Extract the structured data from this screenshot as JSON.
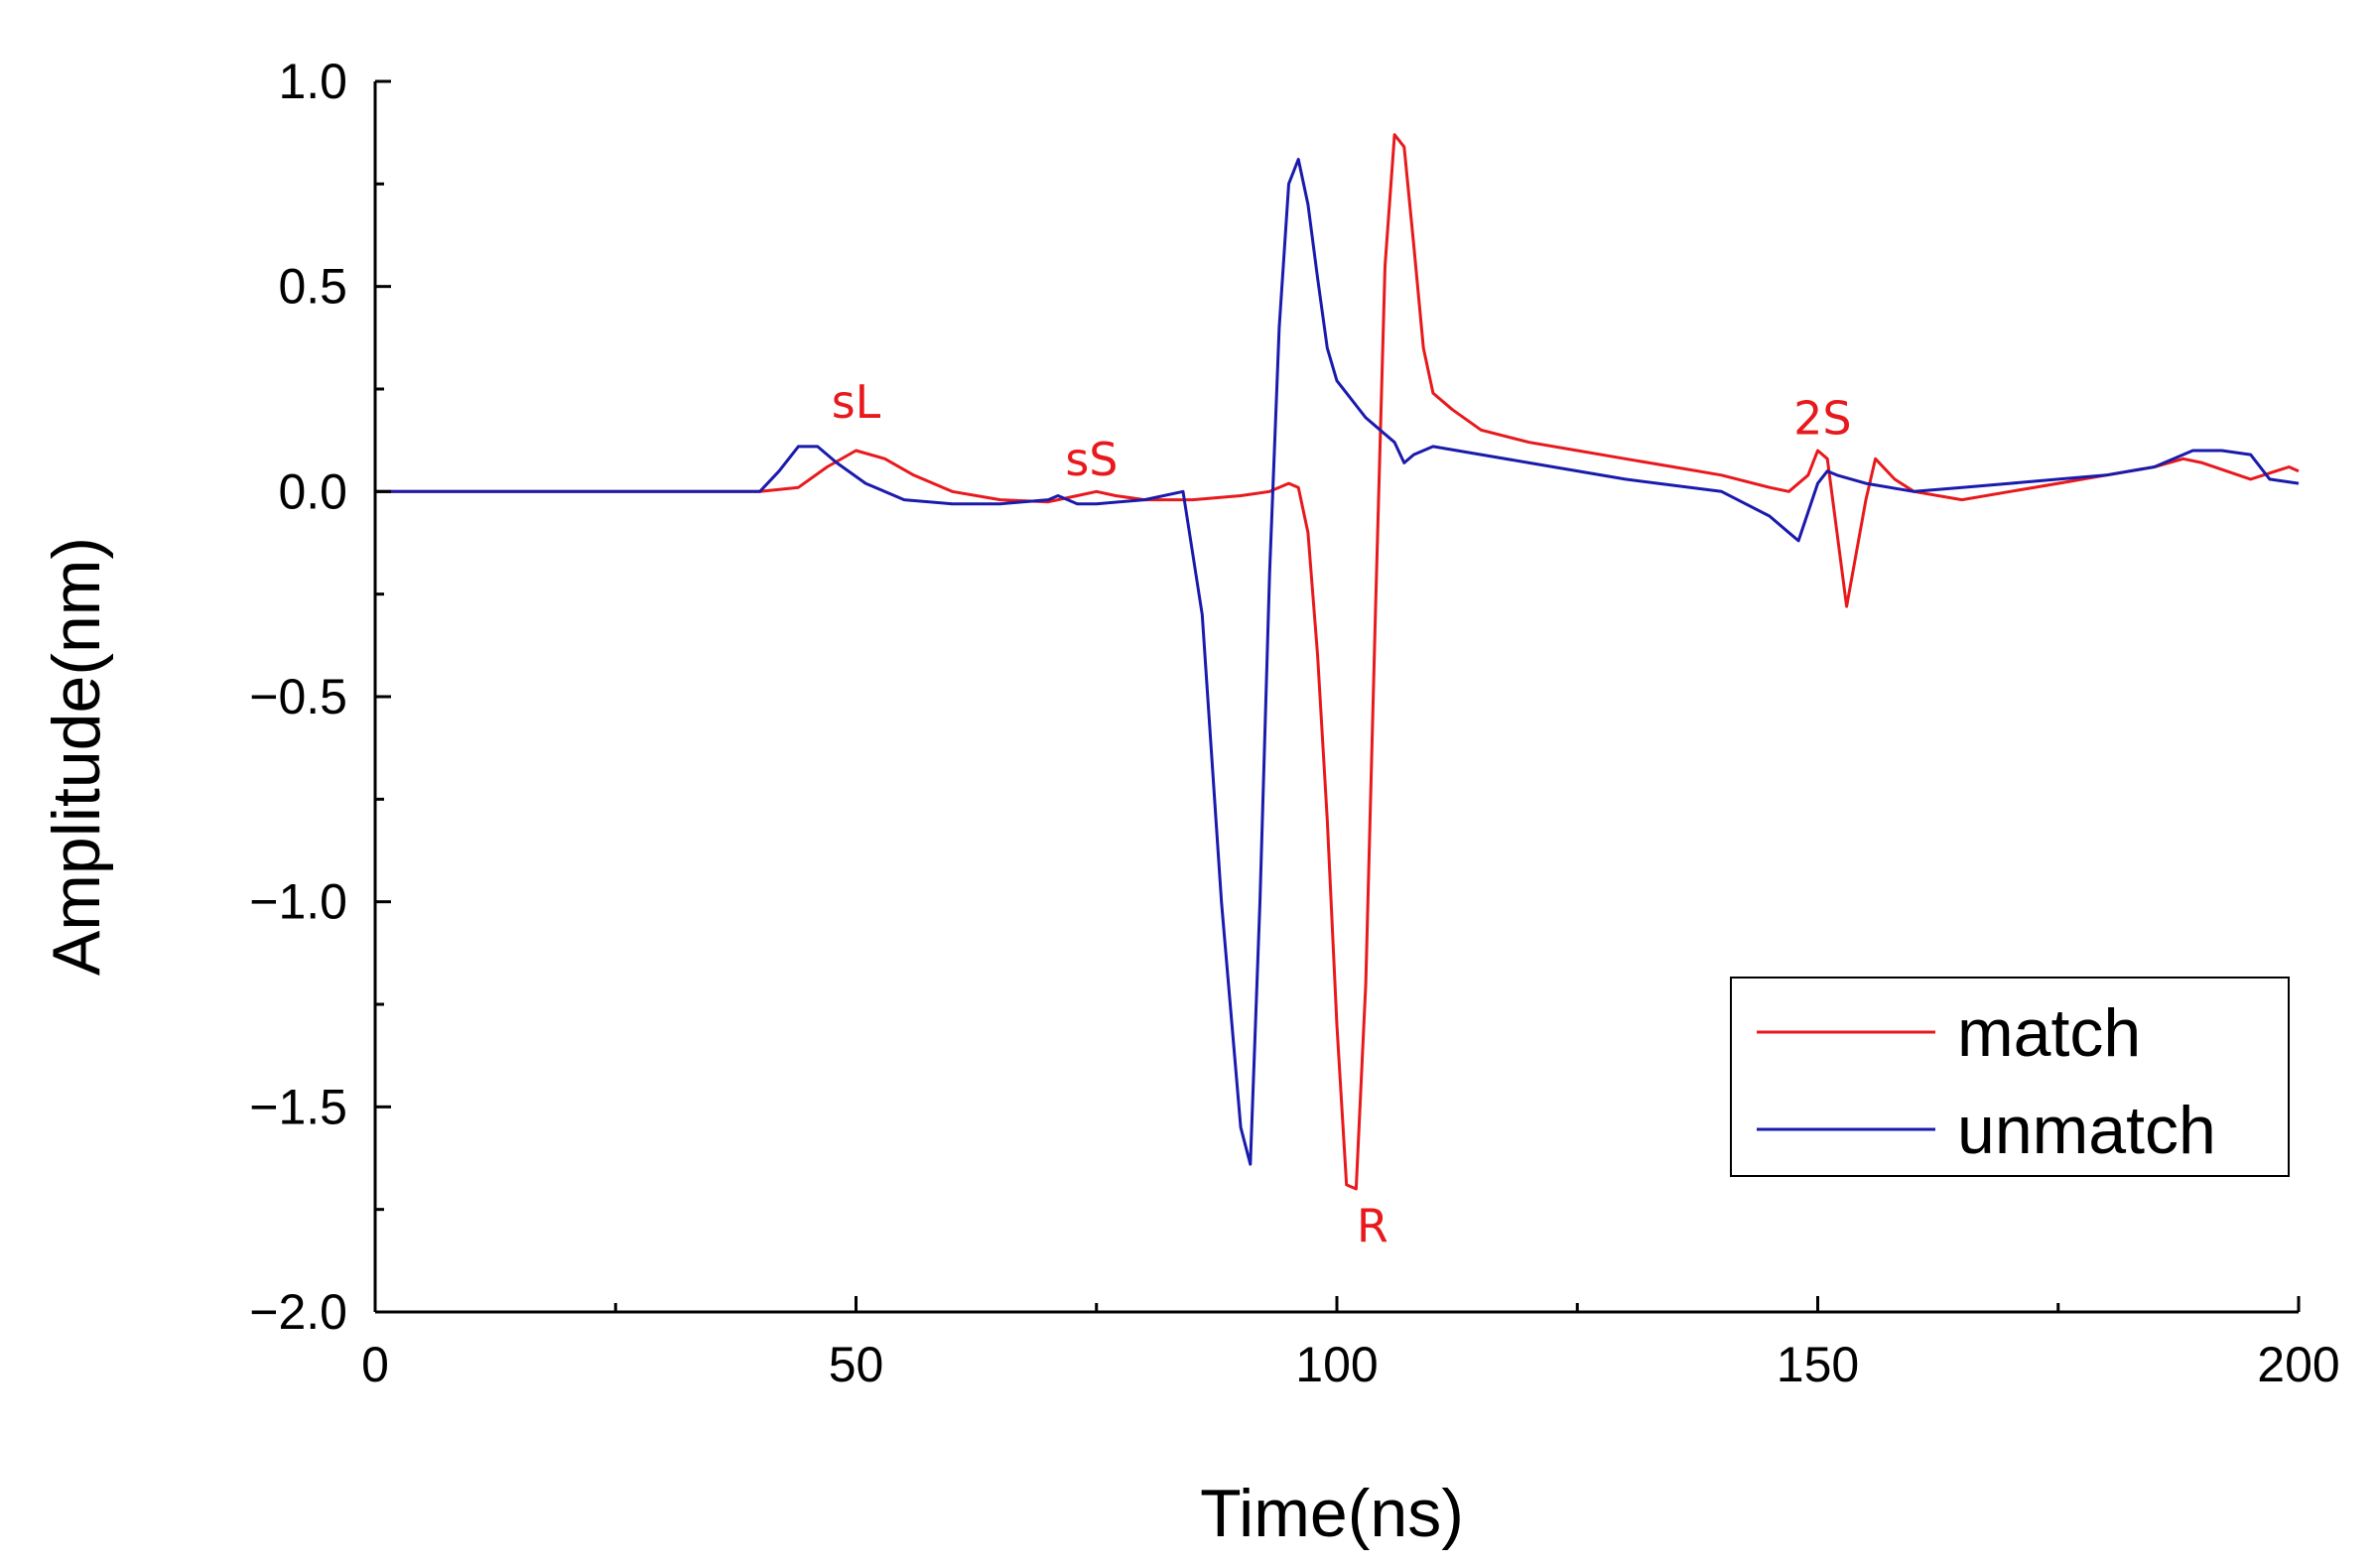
{
  "chart_data": {
    "type": "line",
    "xlabel": "Time(ns)",
    "ylabel": "Amplitude(nm)",
    "xlim": [
      0,
      200
    ],
    "ylim": [
      -2.0,
      1.0
    ],
    "xticks": [
      0,
      50,
      100,
      150,
      200
    ],
    "xtick_labels": [
      "0",
      "50",
      "100",
      "150",
      "200"
    ],
    "yticks": [
      1.0,
      0.5,
      0.0,
      -0.5,
      -1.0,
      -1.5,
      -2.0
    ],
    "ytick_labels": [
      "1.0",
      "0.5",
      "0.0",
      "−0.5",
      "−1.0",
      "−1.5",
      "−2.0"
    ],
    "grid": false,
    "legend_position": "lower-right",
    "series": [
      {
        "name": "match",
        "color": "#e8191c",
        "x": [
          0,
          40,
          44,
          47,
          50,
          53,
          56,
          60,
          65,
          70,
          73,
          75,
          77,
          80,
          85,
          90,
          93,
          95,
          96,
          97,
          98,
          99,
          100,
          101,
          102,
          103,
          104,
          105,
          106,
          107,
          108,
          109,
          110,
          112,
          115,
          120,
          125,
          130,
          135,
          140,
          145,
          147,
          149,
          150,
          151,
          152,
          153,
          154,
          155,
          156,
          158,
          160,
          165,
          170,
          175,
          180,
          185,
          188,
          190,
          195,
          199,
          200
        ],
        "y": [
          0.0,
          0.0,
          0.01,
          0.06,
          0.1,
          0.08,
          0.04,
          0.0,
          -0.02,
          -0.025,
          -0.01,
          0.0,
          -0.01,
          -0.02,
          -0.02,
          -0.01,
          0.0,
          0.02,
          0.01,
          -0.1,
          -0.4,
          -0.8,
          -1.3,
          -1.69,
          -1.7,
          -1.2,
          -0.3,
          0.55,
          0.87,
          0.84,
          0.6,
          0.35,
          0.24,
          0.2,
          0.15,
          0.12,
          0.1,
          0.08,
          0.06,
          0.04,
          0.01,
          0.0,
          0.04,
          0.1,
          0.08,
          -0.1,
          -0.28,
          -0.15,
          -0.02,
          0.08,
          0.03,
          0.0,
          -0.02,
          0.0,
          0.02,
          0.04,
          0.06,
          0.08,
          0.07,
          0.03,
          0.06,
          0.05
        ]
      },
      {
        "name": "unmatch",
        "color": "#1a1aad",
        "x": [
          0,
          40,
          42,
          44,
          46,
          48,
          51,
          55,
          60,
          65,
          70,
          71,
          73,
          75,
          80,
          84,
          86,
          88,
          90,
          91,
          92,
          93,
          94,
          95,
          96,
          97,
          98,
          99,
          100,
          101,
          102,
          103,
          104,
          105,
          106,
          107,
          108,
          110,
          115,
          120,
          130,
          140,
          145,
          147,
          148,
          149,
          150,
          151,
          152,
          155,
          160,
          165,
          170,
          175,
          180,
          185,
          189,
          192,
          195,
          197,
          200
        ],
        "y": [
          0.0,
          0.0,
          0.05,
          0.11,
          0.11,
          0.07,
          0.02,
          -0.02,
          -0.03,
          -0.03,
          -0.02,
          -0.01,
          -0.03,
          -0.03,
          -0.02,
          0.0,
          -0.3,
          -1.0,
          -1.55,
          -1.64,
          -1.0,
          -0.2,
          0.4,
          0.75,
          0.81,
          0.7,
          0.52,
          0.35,
          0.27,
          0.24,
          0.21,
          0.18,
          0.16,
          0.14,
          0.12,
          0.07,
          0.09,
          0.11,
          0.09,
          0.07,
          0.03,
          0.0,
          -0.06,
          -0.1,
          -0.12,
          -0.05,
          0.02,
          0.05,
          0.04,
          0.02,
          0.0,
          0.01,
          0.02,
          0.03,
          0.04,
          0.06,
          0.1,
          0.1,
          0.09,
          0.03,
          0.02
        ]
      }
    ],
    "annotations": [
      {
        "text": "sL",
        "x": 50,
        "y": 0.18,
        "color": "#e8191c"
      },
      {
        "text": "sS",
        "x": 74.5,
        "y": 0.04,
        "color": "#e8191c"
      },
      {
        "text": "R",
        "x": 103.7,
        "y": -1.83,
        "color": "#e8191c"
      },
      {
        "text": "2S",
        "x": 150.5,
        "y": 0.14,
        "color": "#e8191c"
      }
    ]
  }
}
